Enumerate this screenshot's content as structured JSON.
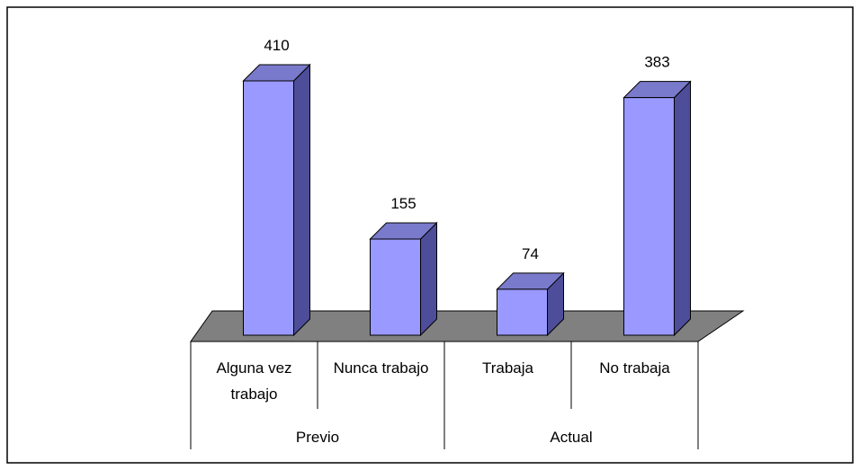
{
  "chart_data": {
    "type": "bar3d",
    "categories": [
      "Alguna vez trabajo",
      "Nunca trabajo",
      "Trabaja",
      "No trabaja"
    ],
    "groups": [
      "Previo",
      "Actual"
    ],
    "values": [
      410,
      155,
      74,
      383
    ],
    "color": "#9999ff"
  }
}
